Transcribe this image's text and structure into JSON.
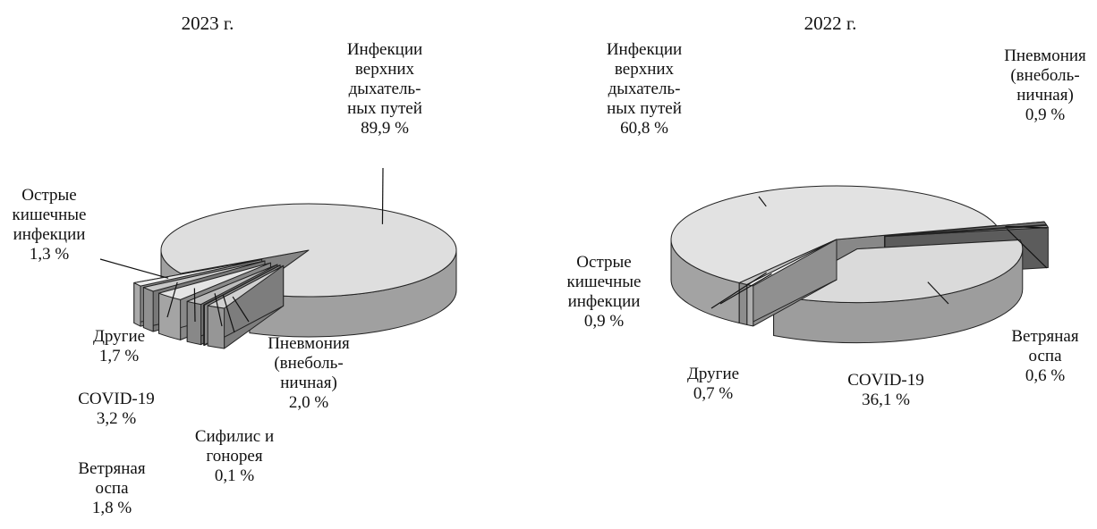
{
  "chart_data": [
    {
      "type": "pie3d",
      "title": "2023 г.",
      "categories": [
        "Инфекции\nверхних\nдыхатель-\nных путей",
        "Острые\nкишечные\nинфекции",
        "Другие",
        "COVID-19",
        "Ветряная\nоспа",
        "Сифилис и\nгонорея",
        "Пневмония\n(внеболь-\nничная)"
      ],
      "values": [
        89.9,
        1.3,
        1.7,
        3.2,
        1.8,
        0.1,
        2.0
      ],
      "value_labels": [
        "89,9 %",
        "1,3 %",
        "1,7 %",
        "3,2 %",
        "1,8 %",
        "0,1 %",
        "2,0 %"
      ],
      "colors": [
        "#dedede",
        "#ececec",
        "#c8c8c8",
        "#e4e4e4",
        "#bdbdbd",
        "#f2f2f2",
        "#d0d0d0"
      ]
    },
    {
      "type": "pie3d",
      "title": "2022 г.",
      "categories": [
        "Инфекции\nверхних\nдыхатель-\nных путей",
        "Пневмония\n(внеболь-\nничная)",
        "Ветряная\nоспа",
        "COVID-19",
        "Другие",
        "Острые\nкишечные\nинфекции"
      ],
      "values": [
        60.8,
        0.9,
        0.6,
        36.1,
        0.7,
        0.9
      ],
      "value_labels": [
        "60,8 %",
        "0,9 %",
        "0,6 %",
        "36,1 %",
        "0,7 %",
        "0,9 %"
      ],
      "colors": [
        "#e2e2e2",
        "#6e6e6e",
        "#9a9a9a",
        "#dadada",
        "#f0f0f0",
        "#c4c4c4"
      ]
    }
  ]
}
